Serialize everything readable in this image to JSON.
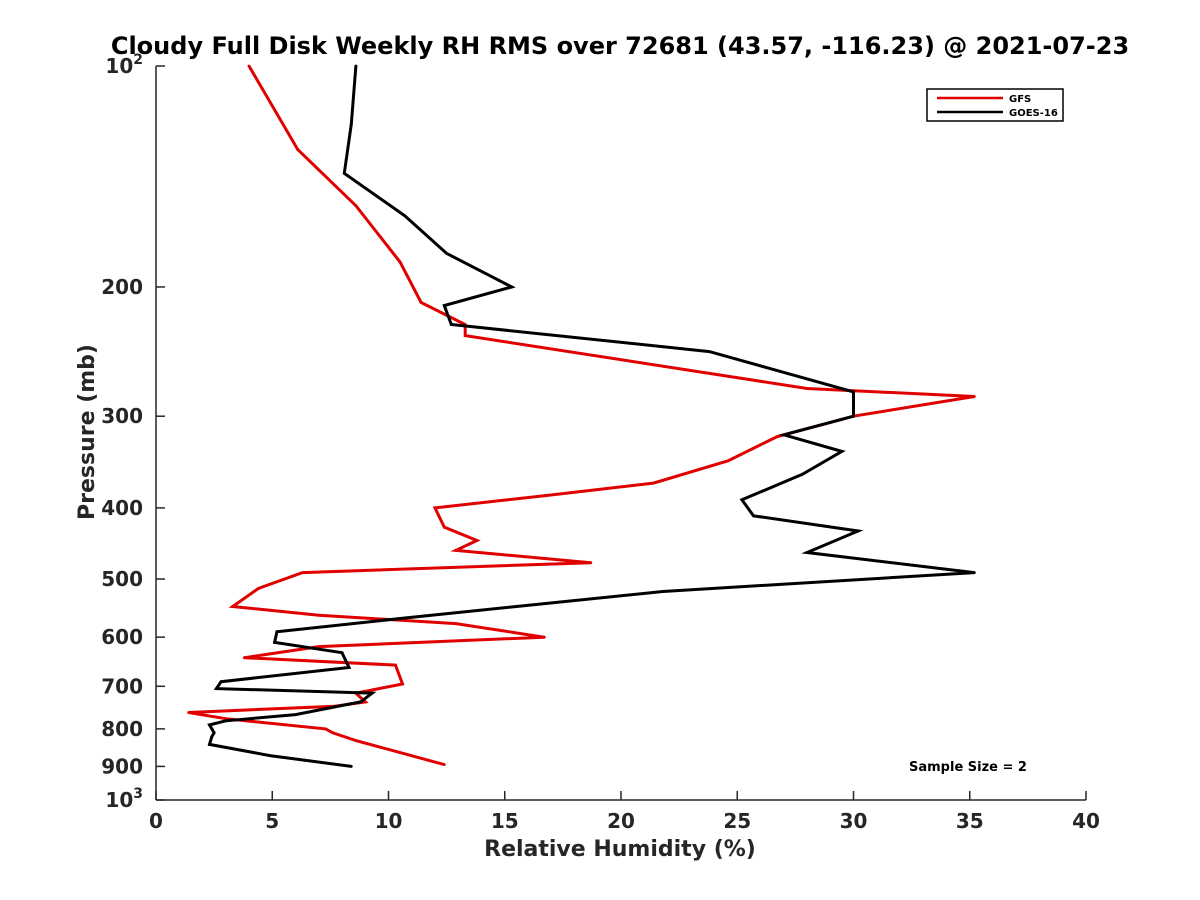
{
  "chart_data": {
    "type": "line",
    "title": "Cloudy Full Disk Weekly RH RMS over 72681 (43.57, -116.23) @ 2021-07-23",
    "xlabel": "Relative Humidity (%)",
    "ylabel": "Pressure (mb)",
    "xlim": [
      0,
      40
    ],
    "ylim": [
      100,
      1000
    ],
    "y_scale": "log",
    "y_reversed": true,
    "grid": false,
    "legend_position": "top-right",
    "x_ticks": [
      0,
      5,
      10,
      15,
      20,
      25,
      30,
      35,
      40
    ],
    "y_ticks": [
      {
        "value": 100,
        "label": "10",
        "sup": "2"
      },
      {
        "value": 200,
        "label": "200",
        "sup": ""
      },
      {
        "value": 300,
        "label": "300",
        "sup": ""
      },
      {
        "value": 400,
        "label": "400",
        "sup": ""
      },
      {
        "value": 500,
        "label": "500",
        "sup": ""
      },
      {
        "value": 600,
        "label": "600",
        "sup": ""
      },
      {
        "value": 700,
        "label": "700",
        "sup": ""
      },
      {
        "value": 800,
        "label": "800",
        "sup": ""
      },
      {
        "value": 900,
        "label": "900",
        "sup": ""
      },
      {
        "value": 1000,
        "label": "10",
        "sup": "3"
      }
    ],
    "series": [
      {
        "name": "GFS",
        "color": "#e00000",
        "x": [
          4.0,
          6.1,
          8.6,
          10.5,
          11.4,
          13.3,
          13.3,
          28.0,
          35.2,
          30.0,
          26.7,
          24.6,
          21.4,
          16.7,
          12.0,
          12.4,
          13.8,
          12.9,
          18.7,
          6.3,
          4.4,
          3.3,
          7.0,
          12.9,
          16.7,
          7.0,
          3.8,
          10.3,
          10.6,
          8.6,
          9.0,
          7.7,
          1.4,
          3.0,
          7.3,
          7.6,
          8.6,
          10.4,
          12.4
        ],
        "y": [
          100,
          130,
          155,
          185,
          210,
          225,
          233,
          275,
          282,
          300,
          320,
          345,
          370,
          385,
          400,
          425,
          443,
          457,
          475,
          490,
          515,
          545,
          560,
          575,
          600,
          618,
          640,
          655,
          695,
          715,
          735,
          745,
          760,
          775,
          800,
          810,
          830,
          860,
          895
        ]
      },
      {
        "name": "GOES-16",
        "color": "#000000",
        "x": [
          8.6,
          8.4,
          8.1,
          10.7,
          12.5,
          15.3,
          12.4,
          12.7,
          23.8,
          30.0,
          30.0,
          27.0,
          29.5,
          27.8,
          25.2,
          25.7,
          30.2,
          28.0,
          35.2,
          21.8,
          15.5,
          10.7,
          5.2,
          5.1,
          8.0,
          8.3,
          2.8,
          2.6,
          9.3,
          8.8,
          6.0,
          3.0,
          2.3,
          2.5,
          2.4,
          2.3,
          4.9,
          8.4
        ],
        "y": [
          100,
          120,
          140,
          160,
          180,
          200,
          212,
          225,
          245,
          278,
          300,
          318,
          335,
          360,
          390,
          410,
          430,
          460,
          490,
          520,
          545,
          565,
          590,
          610,
          630,
          660,
          690,
          705,
          715,
          735,
          765,
          780,
          790,
          810,
          820,
          840,
          870,
          900
        ]
      }
    ],
    "annotations": [
      "Sample Size = 2"
    ]
  }
}
